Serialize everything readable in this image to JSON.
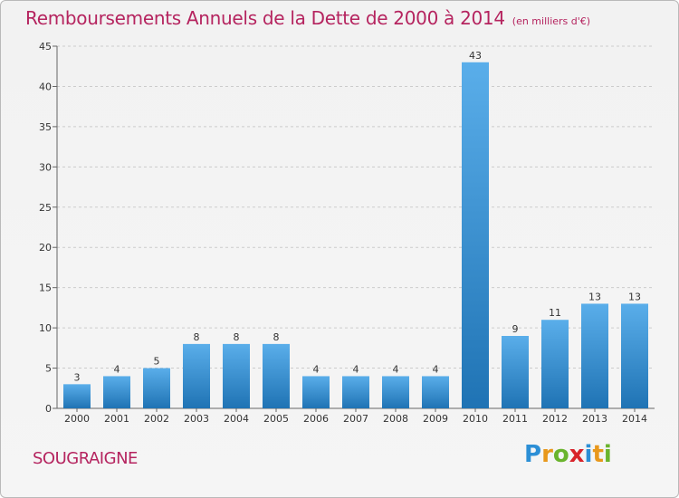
{
  "header": {
    "title": "Remboursements Annuels de la Dette de 2000 à 2014",
    "unit": "(en milliers d'€)"
  },
  "commune": "SOUGRAIGNE",
  "logo": {
    "text": "Proxiti",
    "letters": [
      {
        "ch": "P",
        "color": "#2c8fd6"
      },
      {
        "ch": "r",
        "color": "#e8981c"
      },
      {
        "ch": "o",
        "color": "#6ab42d"
      },
      {
        "ch": "x",
        "color": "#d8232a"
      },
      {
        "ch": "i",
        "color": "#2c8fd6"
      },
      {
        "ch": "t",
        "color": "#e8981c"
      },
      {
        "ch": "i",
        "color": "#6ab42d"
      }
    ]
  },
  "colors": {
    "title": "#b5245f",
    "bar_top": "#5aaeea",
    "bar_bottom": "#1f73b4",
    "grid": "#cccccc",
    "axis": "#666666"
  },
  "chart_data": {
    "type": "bar",
    "title": "Remboursements Annuels de la Dette de 2000 à 2014",
    "subtitle": "(en milliers d'€)",
    "categories": [
      "2000",
      "2001",
      "2002",
      "2003",
      "2004",
      "2005",
      "2006",
      "2007",
      "2008",
      "2009",
      "2010",
      "2011",
      "2012",
      "2013",
      "2014"
    ],
    "values": [
      3,
      4,
      5,
      8,
      8,
      8,
      4,
      4,
      4,
      4,
      43,
      9,
      11,
      13,
      13
    ],
    "ylim": [
      0,
      45
    ],
    "yticks": [
      0,
      5,
      10,
      15,
      20,
      25,
      30,
      35,
      40,
      45
    ],
    "grid": "horizontal dashed",
    "xlabel": "",
    "ylabel": ""
  }
}
